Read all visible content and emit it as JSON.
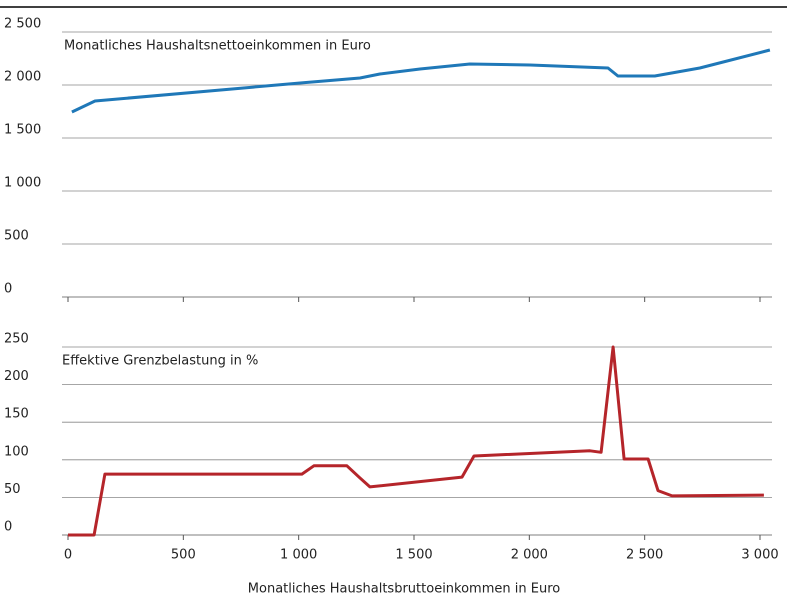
{
  "chart_data": [
    {
      "type": "line",
      "series": [
        {
          "name": "Monatliches Haushaltsnettoeinkommen in Euro",
          "color": "#1f78b8",
          "x": [
            17,
            117,
            1006,
            1266,
            1352,
            1526,
            1742,
            2003,
            2341,
            2384,
            2544,
            2739,
            3043
          ],
          "values": [
            1745,
            1849,
            2019,
            2066,
            2104,
            2151,
            2198,
            2189,
            2160,
            2085,
            2085,
            2160,
            2330
          ]
        }
      ],
      "xlim": [
        0,
        3000
      ],
      "xticks": [
        0,
        500,
        1000,
        1500,
        2000,
        2500,
        3000
      ],
      "ylim": [
        0,
        2500
      ],
      "yticks": [
        0,
        500,
        {
          "value": 1000,
          "label": "1 000"
        },
        {
          "value": 1500,
          "label": "1 500"
        },
        {
          "value": 2000,
          "label": "2 000"
        },
        {
          "value": 2500,
          "label": "2 500"
        }
      ],
      "grid": true
    },
    {
      "type": "line",
      "series": [
        {
          "name": "Effektive Grenzbelastung in %",
          "color": "#b5252a",
          "x": [
            0,
            113,
            160,
            1014,
            1066,
            1209,
            1265,
            1309,
            1708,
            1760,
            2263,
            2311,
            2363,
            2411,
            2515,
            2558,
            2619,
            3017
          ],
          "values": [
            0,
            0,
            81,
            81,
            92,
            92,
            76,
            64,
            77,
            105,
            112,
            110,
            250,
            101,
            101,
            59,
            52,
            53
          ]
        }
      ],
      "xlabel": "Monatliches Haushaltsbruttoeinkommen in Euro",
      "xlim": [
        0,
        3000
      ],
      "xticks": [
        0,
        500,
        {
          "value": 1000,
          "label": "1 000"
        },
        {
          "value": 1500,
          "label": "1 500"
        },
        {
          "value": 2000,
          "label": "2 000"
        },
        {
          "value": 2500,
          "label": "2 500"
        },
        {
          "value": 3000,
          "label": "3 000"
        }
      ],
      "ylim": [
        0,
        250
      ],
      "yticks": [
        0,
        50,
        100,
        150,
        200,
        250
      ],
      "grid": true
    }
  ]
}
